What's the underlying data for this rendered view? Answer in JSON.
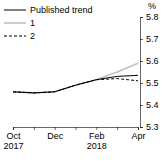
{
  "chart_data": {
    "type": "line",
    "y_label": "%",
    "categories": [
      "Oct 2017",
      null,
      "Dec",
      null,
      "Feb 2018",
      null,
      "Apr"
    ],
    "series": [
      {
        "name": "Published trend",
        "color": "#000000",
        "line_style": "solid",
        "values": [
          5.46,
          5.455,
          5.46,
          5.49,
          5.515,
          5.53,
          5.535
        ]
      },
      {
        "name": "1",
        "color": "#c0c0c0",
        "line_style": "solid",
        "values": [
          5.46,
          5.455,
          5.46,
          5.49,
          5.515,
          5.55,
          5.59
        ]
      },
      {
        "name": "2",
        "color": "#000000",
        "line_style": "dashed",
        "values": [
          5.46,
          5.455,
          5.46,
          5.49,
          5.515,
          5.52,
          5.51
        ]
      }
    ],
    "ylim": [
      5.3,
      5.8
    ],
    "yticks": [
      5.3,
      5.4,
      5.5,
      5.6,
      5.7,
      5.8
    ],
    "grid": false,
    "legend": "upper left"
  }
}
